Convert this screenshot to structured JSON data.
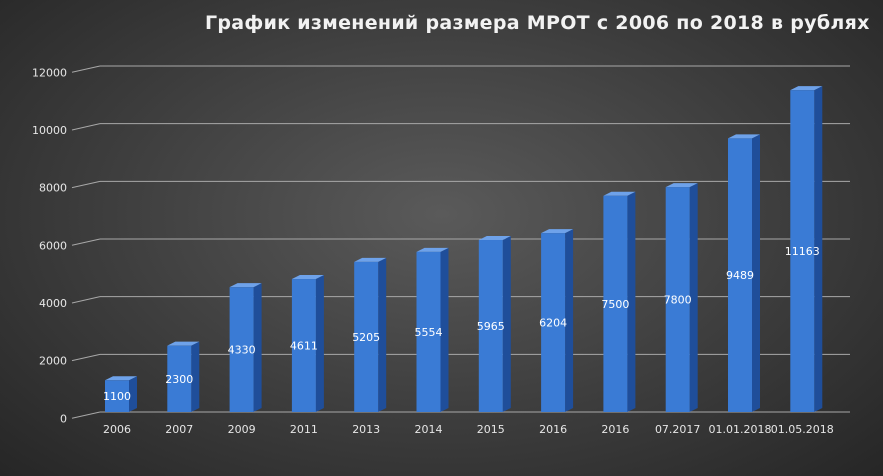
{
  "chart_data": {
    "type": "bar",
    "title": "График изменений размера МРОТ с 2006 по 2018 в рублях",
    "xlabel": "",
    "ylabel": "",
    "categories": [
      "2006",
      "2007",
      "2009",
      "2011",
      "2013",
      "2014",
      "2015",
      "2016",
      "2016",
      "07.2017",
      "01.01.2018",
      "01.05.2018"
    ],
    "values": [
      1100,
      2300,
      4330,
      4611,
      5205,
      5554,
      5965,
      6204,
      7500,
      7800,
      9489,
      11163
    ],
    "data_labels": [
      "1100",
      "2300",
      "4330",
      "4611",
      "5205",
      "5554",
      "5965",
      "6204",
      "7500",
      "7800",
      "9489",
      "11163"
    ],
    "ylim": [
      0,
      12000
    ],
    "yticks": [
      0,
      2000,
      4000,
      6000,
      8000,
      10000,
      12000
    ],
    "ytick_labels": [
      "0",
      "2000",
      "4000",
      "6000",
      "8000",
      "10000",
      "12000"
    ],
    "grid": true,
    "legend": "none",
    "colors": {
      "bar_front": "#3a7bd5",
      "bar_side": "#1f4e9a",
      "bar_top": "#6ea2ea",
      "grid": "#a8a8a8",
      "text": "#e6e6e6"
    }
  }
}
